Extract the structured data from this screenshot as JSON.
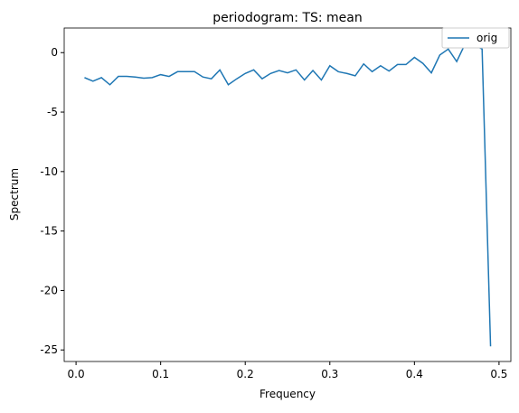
{
  "chart_data": {
    "type": "line",
    "title": "periodogram: TS: mean",
    "x_label": "Frequency",
    "y_label": "Spectrum",
    "x": [
      0.01,
      0.02,
      0.03,
      0.04,
      0.05,
      0.06,
      0.07,
      0.08,
      0.09,
      0.1,
      0.11,
      0.12,
      0.13,
      0.14,
      0.15,
      0.16,
      0.17,
      0.18,
      0.19,
      0.2,
      0.21,
      0.22,
      0.23,
      0.24,
      0.25,
      0.26,
      0.27,
      0.28,
      0.29,
      0.3,
      0.31,
      0.32,
      0.33,
      0.34,
      0.35,
      0.36,
      0.37,
      0.38,
      0.39,
      0.4,
      0.41,
      0.42,
      0.43,
      0.44,
      0.45,
      0.46,
      0.47,
      0.48,
      0.49
    ],
    "series": [
      {
        "name": "orig",
        "color": "#1f77b4",
        "values": [
          -2.1,
          -2.4,
          -2.1,
          -2.7,
          -2.0,
          -2.0,
          -2.05,
          -2.15,
          -2.1,
          -1.85,
          -2.0,
          -1.6,
          -1.6,
          -1.6,
          -2.05,
          -2.2,
          -1.45,
          -2.7,
          -2.2,
          -1.75,
          -1.45,
          -2.2,
          -1.75,
          -1.5,
          -1.7,
          -1.45,
          -2.3,
          -1.5,
          -2.3,
          -1.1,
          -1.6,
          -1.75,
          -1.95,
          -0.95,
          -1.6,
          -1.1,
          -1.55,
          -1.0,
          -1.0,
          -0.4,
          -0.9,
          -1.7,
          -0.2,
          0.3,
          -0.75,
          0.75,
          0.7,
          0.3,
          -24.7
        ]
      }
    ],
    "xlim": [
      -0.014,
      0.514
    ],
    "ylim": [
      -25.97,
      2.07
    ],
    "xticks": [
      {
        "value": 0,
        "label": "0.0"
      },
      0.1,
      0.2,
      0.3,
      0.4,
      0.5
    ],
    "yticks": [
      -25,
      -20,
      -15,
      -10,
      -5,
      0
    ],
    "legend": "upper right"
  }
}
